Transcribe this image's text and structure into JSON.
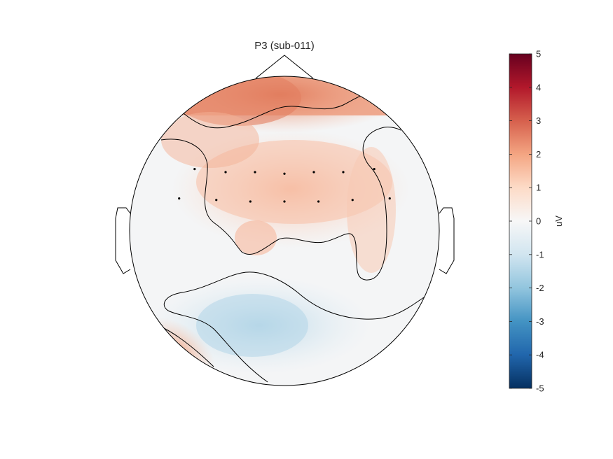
{
  "chart_data": {
    "type": "heatmap",
    "title": "P3 (sub-011)",
    "colorbar": {
      "label": "uV",
      "range": [
        -5,
        5
      ],
      "ticks": [
        "5",
        "4",
        "3",
        "2",
        "1",
        "0",
        "-1",
        "-2",
        "-3",
        "-4",
        "-5"
      ],
      "colormap": [
        "#053061",
        "#2166ac",
        "#4393c3",
        "#92c5de",
        "#d1e5f0",
        "#f7f7f7",
        "#fddbc7",
        "#f4a582",
        "#d6604d",
        "#b2182b",
        "#67001f"
      ]
    },
    "electrodes": [
      {
        "x": -0.58,
        "y": 0.4
      },
      {
        "x": -0.38,
        "y": 0.38
      },
      {
        "x": -0.19,
        "y": 0.38
      },
      {
        "x": 0.0,
        "y": 0.37
      },
      {
        "x": 0.19,
        "y": 0.38
      },
      {
        "x": 0.38,
        "y": 0.38
      },
      {
        "x": 0.58,
        "y": 0.4
      },
      {
        "x": -0.68,
        "y": 0.21
      },
      {
        "x": -0.44,
        "y": 0.2
      },
      {
        "x": -0.22,
        "y": 0.19
      },
      {
        "x": 0.0,
        "y": 0.19
      },
      {
        "x": 0.22,
        "y": 0.19
      },
      {
        "x": 0.44,
        "y": 0.2
      },
      {
        "x": 0.68,
        "y": 0.21
      }
    ],
    "grid": false
  }
}
